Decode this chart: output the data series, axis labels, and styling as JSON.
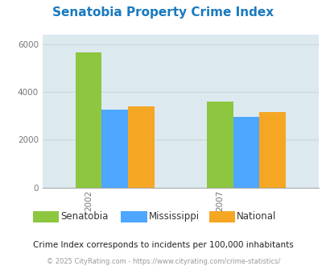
{
  "title": "Senatobia Property Crime Index",
  "title_color": "#1a7abf",
  "years": [
    "2002",
    "2007"
  ],
  "series": {
    "Senatobia": [
      5650,
      3600
    ],
    "Mississippi": [
      3250,
      2950
    ],
    "National": [
      3400,
      3150
    ]
  },
  "colors": {
    "Senatobia": "#8dc63f",
    "Mississippi": "#4da6ff",
    "National": "#f5a623"
  },
  "ylim": [
    0,
    6400
  ],
  "yticks": [
    0,
    2000,
    4000,
    6000
  ],
  "plot_bg": "#dce9ef",
  "fig_bg": "#ffffff",
  "footnote1": "Crime Index corresponds to incidents per 100,000 inhabitants",
  "footnote2": "© 2025 CityRating.com - https://www.cityrating.com/crime-statistics/",
  "footnote1_color": "#222222",
  "footnote2_color": "#999999",
  "bar_width": 0.2
}
